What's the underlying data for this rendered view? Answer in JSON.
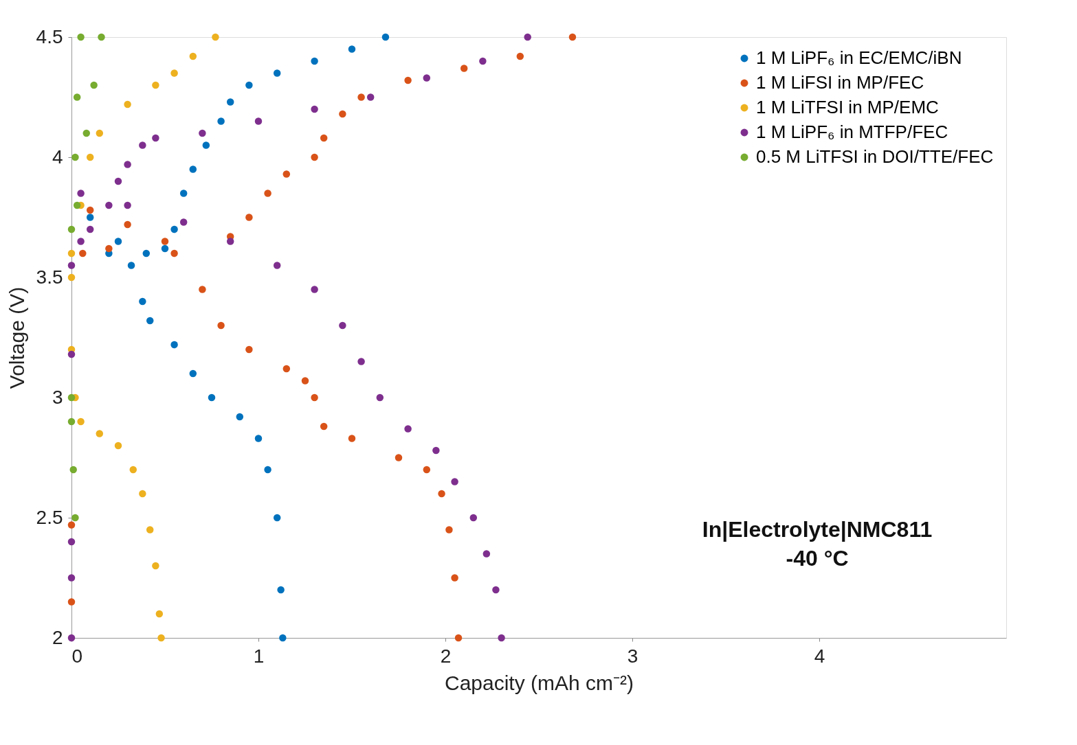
{
  "chart_data": {
    "type": "scatter",
    "xlabel": "Capacity (mAh cm⁻²)",
    "ylabel": "Voltage (V)",
    "xlim": [
      0,
      5
    ],
    "ylim": [
      2,
      4.5
    ],
    "xticks": [
      0,
      1,
      2,
      3,
      4
    ],
    "yticks": [
      2,
      2.5,
      3,
      3.5,
      4,
      4.5
    ],
    "grid": false,
    "legend": "top right",
    "marker": "circle",
    "annotations": [
      "In|Electrolyte|NMC811",
      "-40 °C"
    ],
    "series": [
      {
        "name": "1 M LiPF₆ in EC/EMC/iBN",
        "color": "#0072bd",
        "x": [
          0.2,
          0.4,
          0.5,
          0.55,
          0.6,
          0.65,
          0.72,
          0.8,
          0.85,
          0.95,
          1.1,
          1.3,
          1.5,
          1.68,
          0.1,
          0.25,
          0.32,
          0.38,
          0.42,
          0.55,
          0.65,
          0.75,
          0.9,
          1.0,
          1.05,
          1.1,
          1.12,
          1.13
        ],
        "values": [
          3.6,
          3.6,
          3.62,
          3.7,
          3.85,
          3.95,
          4.05,
          4.15,
          4.23,
          4.3,
          4.35,
          4.4,
          4.45,
          4.5,
          3.75,
          3.65,
          3.55,
          3.4,
          3.32,
          3.22,
          3.1,
          3.0,
          2.92,
          2.83,
          2.7,
          2.5,
          2.2,
          2.0
        ]
      },
      {
        "name": "1 M LiFSI in MP/FEC",
        "color": "#d95319",
        "x": [
          0.06,
          0.2,
          0.5,
          0.85,
          0.95,
          1.05,
          1.15,
          1.3,
          1.35,
          1.45,
          1.55,
          1.8,
          2.1,
          2.4,
          2.68,
          0.1,
          0.3,
          0.55,
          0.7,
          0.8,
          0.95,
          1.15,
          1.25,
          1.3,
          1.35,
          1.5,
          1.75,
          1.9,
          1.98,
          2.02,
          2.05,
          2.07,
          0.0,
          0.0
        ],
        "values": [
          3.6,
          3.62,
          3.65,
          3.67,
          3.75,
          3.85,
          3.93,
          4.0,
          4.08,
          4.18,
          4.25,
          4.32,
          4.37,
          4.42,
          4.5,
          3.78,
          3.72,
          3.6,
          3.45,
          3.3,
          3.2,
          3.12,
          3.07,
          3.0,
          2.88,
          2.83,
          2.75,
          2.7,
          2.6,
          2.45,
          2.25,
          2.0,
          2.15,
          2.47
        ]
      },
      {
        "name": "1 M LiTFSI in MP/EMC",
        "color": "#edb120",
        "x": [
          0.0,
          0.05,
          0.1,
          0.15,
          0.3,
          0.45,
          0.55,
          0.65,
          0.77,
          0.0,
          0.0,
          0.02,
          0.05,
          0.15,
          0.25,
          0.33,
          0.38,
          0.42,
          0.45,
          0.47,
          0.48
        ],
        "values": [
          3.6,
          3.8,
          4.0,
          4.1,
          4.22,
          4.3,
          4.35,
          4.42,
          4.5,
          3.5,
          3.2,
          3.0,
          2.9,
          2.85,
          2.8,
          2.7,
          2.6,
          2.45,
          2.3,
          2.1,
          2.0
        ]
      },
      {
        "name": "1 M LiPF₆ in MTFP/FEC",
        "color": "#7e2f8e",
        "x": [
          0.0,
          0.05,
          0.1,
          0.2,
          0.25,
          0.3,
          0.38,
          0.45,
          0.7,
          1.0,
          1.3,
          1.6,
          1.9,
          2.2,
          2.44,
          0.05,
          0.3,
          0.6,
          0.85,
          1.1,
          1.3,
          1.45,
          1.55,
          1.65,
          1.8,
          1.95,
          2.05,
          2.15,
          2.22,
          2.27,
          2.3,
          0.0,
          0.0,
          0.0,
          0.0
        ],
        "values": [
          3.55,
          3.65,
          3.7,
          3.8,
          3.9,
          3.97,
          4.05,
          4.08,
          4.1,
          4.15,
          4.2,
          4.25,
          4.33,
          4.4,
          4.5,
          3.85,
          3.8,
          3.73,
          3.65,
          3.55,
          3.45,
          3.3,
          3.15,
          3.0,
          2.87,
          2.78,
          2.65,
          2.5,
          2.35,
          2.2,
          2.0,
          2.0,
          2.25,
          2.4,
          3.18
        ]
      },
      {
        "name": "0.5 M LiTFSI in DOI/TTE/FEC",
        "color": "#77ac30",
        "x": [
          0.0,
          0.02,
          0.03,
          0.05,
          0.03,
          0.08,
          0.12,
          0.16,
          0.02,
          0.01,
          0.0,
          0.0
        ],
        "values": [
          3.7,
          4.0,
          4.25,
          4.5,
          3.8,
          4.1,
          4.3,
          4.5,
          2.5,
          2.7,
          2.9,
          3.0
        ]
      }
    ]
  }
}
